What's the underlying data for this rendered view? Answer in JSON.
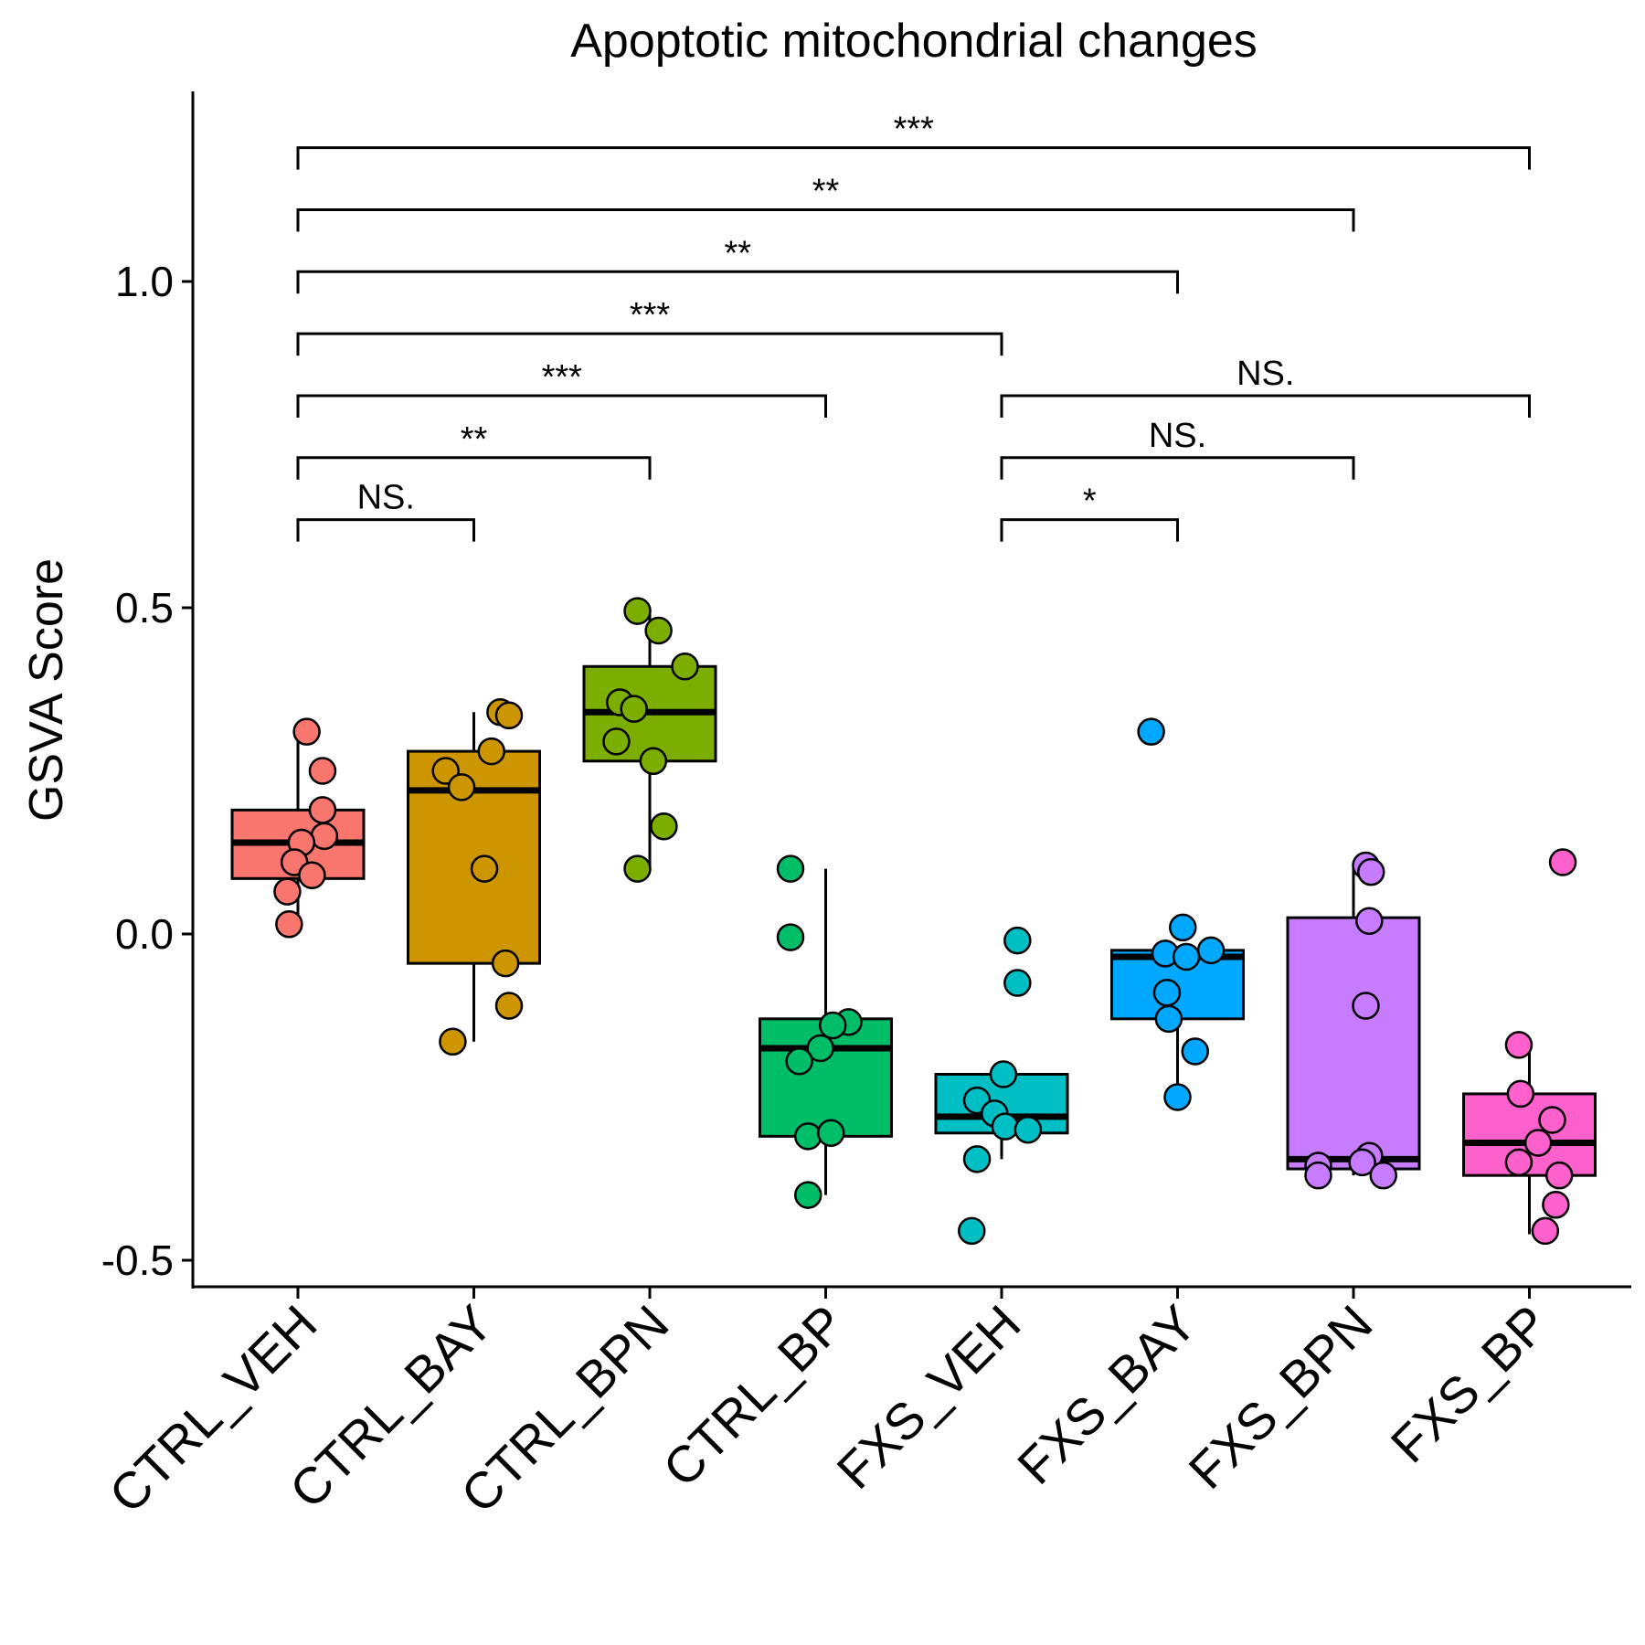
{
  "chart_data": {
    "type": "box",
    "title": "Apoptotic mitochondrial changes",
    "xlabel": "",
    "ylabel": "GSVA Score",
    "ylim": [
      -0.55,
      1.25
    ],
    "yticks": [
      -0.5,
      0.0,
      0.5,
      1.0
    ],
    "ytick_labels": [
      "-0.5",
      "0.0",
      "0.5",
      "1.0"
    ],
    "grid": false,
    "legend": "none",
    "categories": [
      "CTRL_VEH",
      "CTRL_BAY",
      "CTRL_BPN",
      "CTRL_BP",
      "FXS_VEH",
      "FXS_BAY",
      "FXS_BPN",
      "FXS_BP"
    ],
    "colors": [
      "#F8766D",
      "#CD9600",
      "#7CAE00",
      "#00BE67",
      "#00BFC4",
      "#00A9FF",
      "#C77CFF",
      "#FF61CC"
    ],
    "boxes": [
      {
        "q1": 0.085,
        "median": 0.14,
        "q3": 0.19,
        "whisker_low": 0.01,
        "whisker_high": 0.31
      },
      {
        "q1": -0.045,
        "median": 0.22,
        "q3": 0.28,
        "whisker_low": -0.165,
        "whisker_high": 0.34
      },
      {
        "q1": 0.265,
        "median": 0.34,
        "q3": 0.41,
        "whisker_low": 0.1,
        "whisker_high": 0.49
      },
      {
        "q1": -0.31,
        "median": -0.175,
        "q3": -0.13,
        "whisker_low": -0.4,
        "whisker_high": 0.1
      },
      {
        "q1": -0.305,
        "median": -0.28,
        "q3": -0.215,
        "whisker_low": -0.345,
        "whisker_high": -0.215
      },
      {
        "q1": -0.13,
        "median": -0.035,
        "q3": -0.025,
        "whisker_low": -0.25,
        "whisker_high": -0.025
      },
      {
        "q1": -0.36,
        "median": -0.345,
        "q3": 0.025,
        "whisker_low": -0.37,
        "whisker_high": 0.1
      },
      {
        "q1": -0.37,
        "median": -0.32,
        "q3": -0.245,
        "whisker_low": -0.46,
        "whisker_high": -0.175
      }
    ],
    "points": [
      [
        0.31,
        0.25,
        0.19,
        0.15,
        0.14,
        0.11,
        0.09,
        0.065,
        0.015
      ],
      [
        0.34,
        0.335,
        0.28,
        0.25,
        0.225,
        0.1,
        -0.045,
        -0.11,
        -0.165
      ],
      [
        0.495,
        0.465,
        0.41,
        0.355,
        0.345,
        0.295,
        0.265,
        0.165,
        0.1
      ],
      [
        0.1,
        -0.005,
        -0.135,
        -0.14,
        -0.175,
        -0.195,
        -0.31,
        -0.305,
        -0.4
      ],
      [
        -0.01,
        -0.075,
        -0.215,
        -0.255,
        -0.275,
        -0.295,
        -0.3,
        -0.345,
        -0.455
      ],
      [
        0.31,
        0.01,
        -0.025,
        -0.03,
        -0.035,
        -0.09,
        -0.13,
        -0.18,
        -0.25
      ],
      [
        0.105,
        0.095,
        0.02,
        -0.11,
        -0.34,
        -0.35,
        -0.355,
        -0.37,
        -0.37
      ],
      [
        0.11,
        -0.17,
        -0.245,
        -0.285,
        -0.32,
        -0.35,
        -0.37,
        -0.415,
        -0.455
      ]
    ],
    "point_offsets": [
      [
        0.05,
        0.14,
        0.14,
        0.15,
        0.02,
        -0.02,
        0.08,
        -0.06,
        -0.05
      ],
      [
        0.15,
        0.2,
        0.1,
        -0.16,
        -0.07,
        0.06,
        0.18,
        0.2,
        -0.12
      ],
      [
        -0.07,
        0.05,
        0.2,
        -0.17,
        -0.09,
        -0.19,
        0.02,
        0.08,
        -0.07
      ],
      [
        -0.2,
        -0.2,
        0.13,
        0.04,
        -0.03,
        -0.15,
        -0.1,
        0.03,
        -0.1
      ],
      [
        0.09,
        0.09,
        0.01,
        -0.14,
        -0.04,
        0.02,
        0.15,
        -0.14,
        -0.17
      ],
      [
        -0.15,
        0.03,
        0.19,
        -0.07,
        0.05,
        -0.06,
        -0.05,
        0.1,
        0.0
      ],
      [
        0.07,
        0.1,
        0.09,
        0.07,
        0.09,
        0.05,
        -0.2,
        0.17,
        -0.2
      ],
      [
        0.19,
        -0.06,
        -0.05,
        0.13,
        0.05,
        -0.06,
        0.17,
        0.15,
        0.09
      ]
    ],
    "comparisons": [
      {
        "from": 0,
        "to": 1,
        "label": "NS.",
        "y": 0.635
      },
      {
        "from": 0,
        "to": 2,
        "label": "**",
        "y": 0.73
      },
      {
        "from": 0,
        "to": 3,
        "label": "***",
        "y": 0.825
      },
      {
        "from": 0,
        "to": 4,
        "label": "***",
        "y": 0.92
      },
      {
        "from": 0,
        "to": 5,
        "label": "**",
        "y": 1.015
      },
      {
        "from": 0,
        "to": 6,
        "label": "**",
        "y": 1.11
      },
      {
        "from": 0,
        "to": 7,
        "label": "***",
        "y": 1.205
      },
      {
        "from": 4,
        "to": 5,
        "label": "*",
        "y": 0.635
      },
      {
        "from": 4,
        "to": 6,
        "label": "NS.",
        "y": 0.73
      },
      {
        "from": 4,
        "to": 7,
        "label": "NS.",
        "y": 0.825
      }
    ]
  }
}
